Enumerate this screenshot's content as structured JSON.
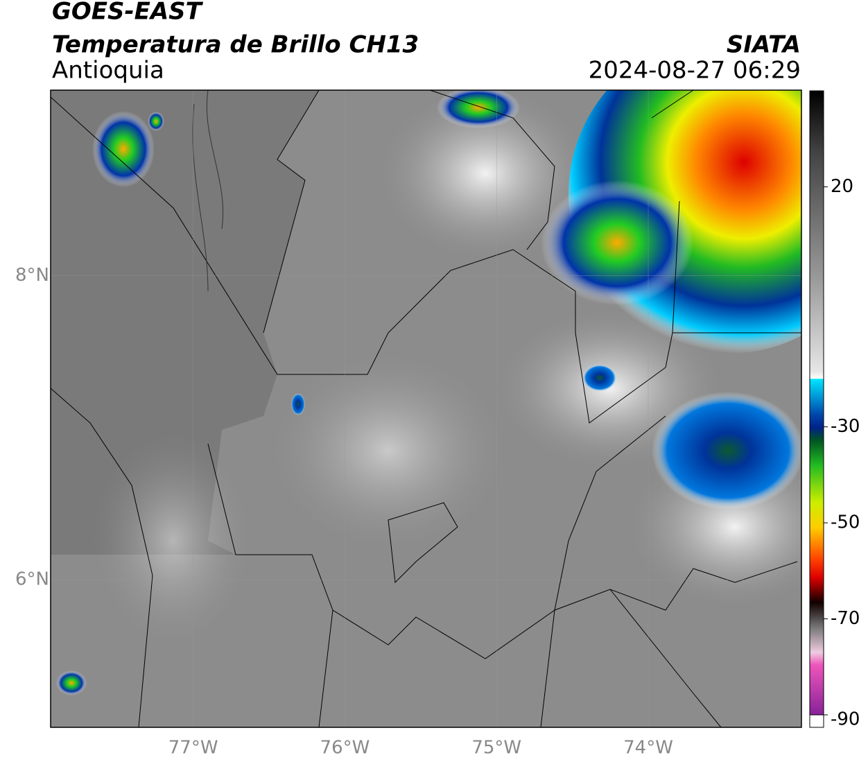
{
  "header": {
    "satellite": "GOES-EAST",
    "product": "Temperatura de Brillo CH13",
    "agency": "SIATA",
    "region": "Antioquia",
    "datetime": "2024-08-27 06:29"
  },
  "map": {
    "xlim": [
      -77.94,
      -72.99
    ],
    "ylim": [
      5.03,
      9.22
    ],
    "xticks": [
      {
        "value": -77,
        "label": "77°W"
      },
      {
        "value": -76,
        "label": "76°W"
      },
      {
        "value": -75,
        "label": "75°W"
      },
      {
        "value": -74,
        "label": "74°W"
      }
    ],
    "yticks": [
      {
        "value": 8,
        "label": "8°N"
      },
      {
        "value": 6,
        "label": "6°N"
      }
    ],
    "grid": true
  },
  "colorbar": {
    "clim": [
      -90,
      40
    ],
    "ticks": [
      20,
      -30,
      -50,
      -70,
      -90
    ]
  }
}
